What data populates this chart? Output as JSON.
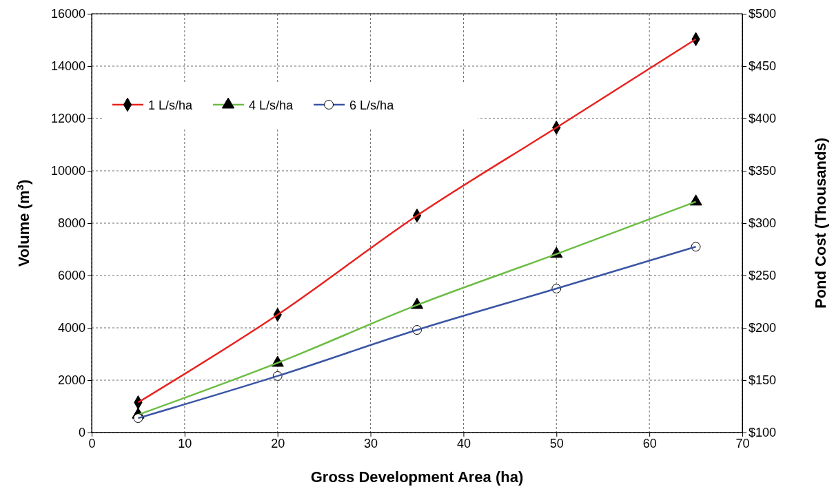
{
  "chart_data": {
    "type": "line",
    "xlabel": "Gross Development Area (ha)",
    "ylabel": "Volume (m$^{3}$)",
    "y2label": "Pond Cost (Thousands)",
    "xlim": [
      0,
      70
    ],
    "xticks": [
      0,
      10,
      20,
      30,
      40,
      50,
      60,
      70
    ],
    "ylim": [
      0,
      16000
    ],
    "yticks": [
      0,
      2000,
      4000,
      6000,
      8000,
      10000,
      12000,
      14000,
      16000
    ],
    "y2lim": [
      100,
      500
    ],
    "y2ticks": [
      {
        "value": 100,
        "label": "$100"
      },
      {
        "value": 150,
        "label": "$150"
      },
      {
        "value": 200,
        "label": "$200"
      },
      {
        "value": 250,
        "label": "$250"
      },
      {
        "value": 300,
        "label": "$300"
      },
      {
        "value": 350,
        "label": "$350"
      },
      {
        "value": 400,
        "label": "$400"
      },
      {
        "value": 450,
        "label": "$450"
      },
      {
        "value": 500,
        "label": "$500"
      }
    ],
    "grid": true,
    "legend": "top left",
    "line_style": "solid",
    "series": [
      {
        "name": "1 L/s/ha",
        "color": "#e8221e",
        "marker": "diamond",
        "x": [
          5,
          20,
          35,
          50,
          65
        ],
        "values": [
          1150,
          4500,
          8290,
          11650,
          15030
        ]
      },
      {
        "name": "4 L/s/ha",
        "color": "#6cbd45",
        "marker": "triangle",
        "x": [
          5,
          20,
          35,
          50,
          65
        ],
        "values": [
          680,
          2660,
          4870,
          6820,
          8820
        ]
      },
      {
        "name": "6 L/s/ha",
        "color": "#3a55a4",
        "marker": "circle",
        "x": [
          5,
          20,
          35,
          50,
          65
        ],
        "values": [
          550,
          2160,
          3920,
          5500,
          7100
        ]
      }
    ]
  }
}
